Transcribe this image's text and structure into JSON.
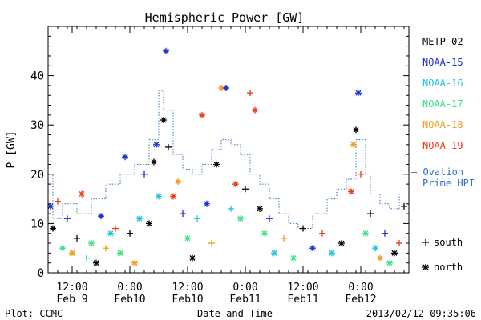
{
  "chart_data": {
    "type": "scatter",
    "title": "Hemispheric Power [GW]",
    "xlabel": "Date and Time",
    "ylabel": "P [GW]",
    "ylim": [
      0,
      50
    ],
    "xlim": [
      "2013-02-09T07:00",
      "2013-02-12T10:00"
    ],
    "y_ticks": [
      0,
      10,
      20,
      30,
      40
    ],
    "x_ticks": [
      {
        "x": "2013-02-09T12:00",
        "line1": "12:00",
        "line2": "Feb 9"
      },
      {
        "x": "2013-02-10T00:00",
        "line1": "0:00",
        "line2": "Feb10"
      },
      {
        "x": "2013-02-10T12:00",
        "line1": "12:00",
        "line2": "Feb10"
      },
      {
        "x": "2013-02-11T00:00",
        "line1": "0:00",
        "line2": "Feb11"
      },
      {
        "x": "2013-02-11T12:00",
        "line1": "12:00",
        "line2": "Feb11"
      },
      {
        "x": "2013-02-12T00:00",
        "line1": "0:00",
        "line2": "Feb12"
      }
    ],
    "grid": false,
    "legend_placement": "right",
    "series": [
      {
        "name": "METP-02",
        "color": "#000000"
      },
      {
        "name": "NOAA-15",
        "color": "#1f2fd0"
      },
      {
        "name": "NOAA-16",
        "color": "#22c4e0"
      },
      {
        "name": "NOAA-17",
        "color": "#3ee08a"
      },
      {
        "name": "NOAA-18",
        "color": "#f29a22"
      },
      {
        "name": "NOAA-19",
        "color": "#e83a16"
      }
    ],
    "markers": [
      {
        "symbol": "+",
        "label": "south"
      },
      {
        "symbol": "*",
        "label": "north"
      }
    ],
    "ovation": {
      "label_line1": "— Ovation",
      "label_line2": "Prime HPI",
      "color": "#2a6fc4",
      "steps": [
        {
          "x": "2013-02-09T07:00",
          "y": 20
        },
        {
          "x": "2013-02-09T08:00",
          "y": 11
        },
        {
          "x": "2013-02-09T10:00",
          "y": 14
        },
        {
          "x": "2013-02-09T13:00",
          "y": 12
        },
        {
          "x": "2013-02-09T16:00",
          "y": 15
        },
        {
          "x": "2013-02-09T19:00",
          "y": 18
        },
        {
          "x": "2013-02-09T22:00",
          "y": 20
        },
        {
          "x": "2013-02-10T01:00",
          "y": 22
        },
        {
          "x": "2013-02-10T04:00",
          "y": 27
        },
        {
          "x": "2013-02-10T06:00",
          "y": 37
        },
        {
          "x": "2013-02-10T07:00",
          "y": 33
        },
        {
          "x": "2013-02-10T09:00",
          "y": 24
        },
        {
          "x": "2013-02-10T11:00",
          "y": 21
        },
        {
          "x": "2013-02-10T13:00",
          "y": 20
        },
        {
          "x": "2013-02-10T15:00",
          "y": 22
        },
        {
          "x": "2013-02-10T17:00",
          "y": 25
        },
        {
          "x": "2013-02-10T19:00",
          "y": 27
        },
        {
          "x": "2013-02-10T21:00",
          "y": 26
        },
        {
          "x": "2013-02-10T23:00",
          "y": 24
        },
        {
          "x": "2013-02-11T01:00",
          "y": 20
        },
        {
          "x": "2013-02-11T03:00",
          "y": 18
        },
        {
          "x": "2013-02-11T05:00",
          "y": 15
        },
        {
          "x": "2013-02-11T07:00",
          "y": 12
        },
        {
          "x": "2013-02-11T09:00",
          "y": 10
        },
        {
          "x": "2013-02-11T11:00",
          "y": 9
        },
        {
          "x": "2013-02-11T14:00",
          "y": 12
        },
        {
          "x": "2013-02-11T17:00",
          "y": 15
        },
        {
          "x": "2013-02-11T19:00",
          "y": 17
        },
        {
          "x": "2013-02-11T21:00",
          "y": 19
        },
        {
          "x": "2013-02-11T23:00",
          "y": 27
        },
        {
          "x": "2013-02-12T01:00",
          "y": 20
        },
        {
          "x": "2013-02-12T02:00",
          "y": 16
        },
        {
          "x": "2013-02-12T04:00",
          "y": 14
        },
        {
          "x": "2013-02-12T06:00",
          "y": 13
        },
        {
          "x": "2013-02-12T08:00",
          "y": 16
        },
        {
          "x": "2013-02-12T10:00",
          "y": 16
        }
      ]
    },
    "points": [
      {
        "x": "2013-02-09T07:30",
        "y": 13.5,
        "s": 1,
        "m": "*"
      },
      {
        "x": "2013-02-09T08:00",
        "y": 9,
        "s": 0,
        "m": "*"
      },
      {
        "x": "2013-02-09T09:00",
        "y": 14.5,
        "s": 5,
        "m": "+"
      },
      {
        "x": "2013-02-09T10:00",
        "y": 5,
        "s": 3,
        "m": "*"
      },
      {
        "x": "2013-02-09T11:00",
        "y": 11,
        "s": 1,
        "m": "+"
      },
      {
        "x": "2013-02-09T12:00",
        "y": 4,
        "s": 4,
        "m": "*"
      },
      {
        "x": "2013-02-09T13:00",
        "y": 7,
        "s": 0,
        "m": "+"
      },
      {
        "x": "2013-02-09T14:00",
        "y": 16,
        "s": 5,
        "m": "*"
      },
      {
        "x": "2013-02-09T15:00",
        "y": 3,
        "s": 2,
        "m": "+"
      },
      {
        "x": "2013-02-09T16:00",
        "y": 6,
        "s": 3,
        "m": "*"
      },
      {
        "x": "2013-02-09T17:00",
        "y": 2,
        "s": 0,
        "m": "*"
      },
      {
        "x": "2013-02-09T18:00",
        "y": 11.5,
        "s": 1,
        "m": "*"
      },
      {
        "x": "2013-02-09T19:00",
        "y": 5,
        "s": 4,
        "m": "+"
      },
      {
        "x": "2013-02-09T20:00",
        "y": 8,
        "s": 2,
        "m": "*"
      },
      {
        "x": "2013-02-09T21:00",
        "y": 9,
        "s": 5,
        "m": "+"
      },
      {
        "x": "2013-02-09T22:00",
        "y": 4,
        "s": 3,
        "m": "*"
      },
      {
        "x": "2013-02-09T23:00",
        "y": 23.5,
        "s": 1,
        "m": "*"
      },
      {
        "x": "2013-02-10T00:00",
        "y": 8,
        "s": 0,
        "m": "+"
      },
      {
        "x": "2013-02-10T01:00",
        "y": 2,
        "s": 4,
        "m": "*"
      },
      {
        "x": "2013-02-10T02:00",
        "y": 11,
        "s": 2,
        "m": "*"
      },
      {
        "x": "2013-02-10T03:00",
        "y": 20,
        "s": 1,
        "m": "+"
      },
      {
        "x": "2013-02-10T04:00",
        "y": 10,
        "s": 0,
        "m": "*"
      },
      {
        "x": "2013-02-10T05:00",
        "y": 22.5,
        "s": 0,
        "m": "*"
      },
      {
        "x": "2013-02-10T05:30",
        "y": 26,
        "s": 1,
        "m": "*"
      },
      {
        "x": "2013-02-10T06:00",
        "y": 15.5,
        "s": 2,
        "m": "*"
      },
      {
        "x": "2013-02-10T07:00",
        "y": 31,
        "s": 0,
        "m": "*"
      },
      {
        "x": "2013-02-10T07:30",
        "y": 45,
        "s": 1,
        "m": "*"
      },
      {
        "x": "2013-02-10T08:00",
        "y": 25.5,
        "s": 0,
        "m": "+"
      },
      {
        "x": "2013-02-10T09:00",
        "y": 15.5,
        "s": 5,
        "m": "*"
      },
      {
        "x": "2013-02-10T10:00",
        "y": 18.5,
        "s": 4,
        "m": "*"
      },
      {
        "x": "2013-02-10T11:00",
        "y": 12,
        "s": 1,
        "m": "+"
      },
      {
        "x": "2013-02-10T12:00",
        "y": 7,
        "s": 3,
        "m": "*"
      },
      {
        "x": "2013-02-10T13:00",
        "y": 3,
        "s": 0,
        "m": "*"
      },
      {
        "x": "2013-02-10T14:00",
        "y": 11,
        "s": 2,
        "m": "+"
      },
      {
        "x": "2013-02-10T15:00",
        "y": 32,
        "s": 5,
        "m": "*"
      },
      {
        "x": "2013-02-10T16:00",
        "y": 14,
        "s": 1,
        "m": "*"
      },
      {
        "x": "2013-02-10T17:00",
        "y": 6,
        "s": 4,
        "m": "+"
      },
      {
        "x": "2013-02-10T18:00",
        "y": 22,
        "s": 0,
        "m": "*"
      },
      {
        "x": "2013-02-10T19:00",
        "y": 37.5,
        "s": 4,
        "m": "*"
      },
      {
        "x": "2013-02-10T20:00",
        "y": 37.5,
        "s": 1,
        "m": "*"
      },
      {
        "x": "2013-02-10T21:00",
        "y": 13,
        "s": 2,
        "m": "+"
      },
      {
        "x": "2013-02-10T22:00",
        "y": 18,
        "s": 5,
        "m": "*"
      },
      {
        "x": "2013-02-10T23:00",
        "y": 11,
        "s": 3,
        "m": "*"
      },
      {
        "x": "2013-02-11T00:00",
        "y": 17,
        "s": 0,
        "m": "+"
      },
      {
        "x": "2013-02-11T01:00",
        "y": 36.5,
        "s": 5,
        "m": "+"
      },
      {
        "x": "2013-02-11T02:00",
        "y": 33,
        "s": 5,
        "m": "*"
      },
      {
        "x": "2013-02-11T03:00",
        "y": 13,
        "s": 0,
        "m": "*"
      },
      {
        "x": "2013-02-11T04:00",
        "y": 8,
        "s": 3,
        "m": "*"
      },
      {
        "x": "2013-02-11T05:00",
        "y": 11,
        "s": 1,
        "m": "+"
      },
      {
        "x": "2013-02-11T06:00",
        "y": 4,
        "s": 2,
        "m": "*"
      },
      {
        "x": "2013-02-11T08:00",
        "y": 7,
        "s": 4,
        "m": "+"
      },
      {
        "x": "2013-02-11T10:00",
        "y": 3,
        "s": 3,
        "m": "*"
      },
      {
        "x": "2013-02-11T12:00",
        "y": 9,
        "s": 0,
        "m": "+"
      },
      {
        "x": "2013-02-11T14:00",
        "y": 5,
        "s": 1,
        "m": "*"
      },
      {
        "x": "2013-02-11T16:00",
        "y": 8,
        "s": 5,
        "m": "+"
      },
      {
        "x": "2013-02-11T18:00",
        "y": 4,
        "s": 2,
        "m": "*"
      },
      {
        "x": "2013-02-11T20:00",
        "y": 6,
        "s": 0,
        "m": "*"
      },
      {
        "x": "2013-02-11T22:00",
        "y": 16.5,
        "s": 5,
        "m": "*"
      },
      {
        "x": "2013-02-11T22:30",
        "y": 26,
        "s": 4,
        "m": "*"
      },
      {
        "x": "2013-02-11T23:00",
        "y": 29,
        "s": 0,
        "m": "*"
      },
      {
        "x": "2013-02-11T23:30",
        "y": 36.5,
        "s": 1,
        "m": "*"
      },
      {
        "x": "2013-02-12T00:00",
        "y": 20,
        "s": 5,
        "m": "+"
      },
      {
        "x": "2013-02-12T01:00",
        "y": 8,
        "s": 3,
        "m": "*"
      },
      {
        "x": "2013-02-12T02:00",
        "y": 12,
        "s": 0,
        "m": "+"
      },
      {
        "x": "2013-02-12T03:00",
        "y": 5,
        "s": 2,
        "m": "*"
      },
      {
        "x": "2013-02-12T04:00",
        "y": 3,
        "s": 4,
        "m": "*"
      },
      {
        "x": "2013-02-12T05:00",
        "y": 8,
        "s": 1,
        "m": "+"
      },
      {
        "x": "2013-02-12T06:00",
        "y": 2,
        "s": 3,
        "m": "*"
      },
      {
        "x": "2013-02-12T07:00",
        "y": 4,
        "s": 0,
        "m": "*"
      },
      {
        "x": "2013-02-12T08:00",
        "y": 6,
        "s": 5,
        "m": "+"
      },
      {
        "x": "2013-02-12T09:00",
        "y": 13.5,
        "s": 0,
        "m": "+"
      }
    ]
  },
  "footer": {
    "left": "Plot: CCMC",
    "right": "2013/02/12 09:35:06"
  }
}
